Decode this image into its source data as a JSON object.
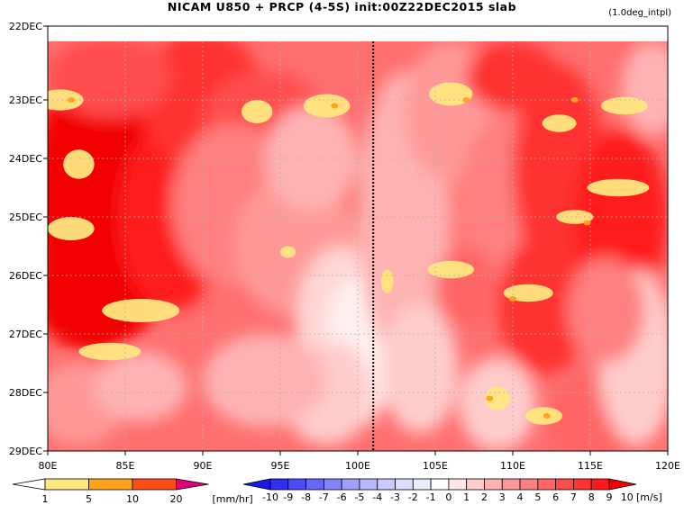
{
  "header": {
    "title": "NICAM   U850 + PRCP (4-5S) init:00Z22DEC2015 slab",
    "note": "(1.0deg_intpl)"
  },
  "chart_data": {
    "type": "heatmap",
    "title": "NICAM   U850 + PRCP (4-5S) init:00Z22DEC2015 slab",
    "x_ticks": [
      "80E",
      "85E",
      "90E",
      "95E",
      "100E",
      "105E",
      "110E",
      "115E",
      "120E"
    ],
    "x_values": [
      80,
      85,
      90,
      95,
      100,
      105,
      110,
      115,
      120
    ],
    "xlim": [
      80,
      120
    ],
    "y_ticks": [
      "22DEC",
      "23DEC",
      "24DEC",
      "25DEC",
      "26DEC",
      "27DEC",
      "28DEC",
      "29DEC"
    ],
    "y_values": [
      22,
      23,
      24,
      25,
      26,
      27,
      28,
      29
    ],
    "ylim": [
      22,
      29
    ],
    "y_inverted": true,
    "grid": true,
    "reference_line_lon": 101,
    "shaded_field": {
      "name": "U850",
      "unit": "[m/s]",
      "levels": [
        "-10",
        "-9",
        "-8",
        "-7",
        "-6",
        "-5",
        "-4",
        "-3",
        "-2",
        "-1",
        "0",
        "1",
        "2",
        "3",
        "4",
        "5",
        "6",
        "7",
        "8",
        "9",
        "10"
      ],
      "colors": [
        "#1818e8",
        "#3030f0",
        "#4c4cf4",
        "#6868f8",
        "#8484fa",
        "#a0a0fc",
        "#b8b8fd",
        "#cacafe",
        "#dcdcff",
        "#ececff",
        "#ffffff",
        "#ffe6e6",
        "#ffcccc",
        "#ffb3b3",
        "#ff9999",
        "#ff8080",
        "#ff6666",
        "#ff4d4d",
        "#ff3333",
        "#ff1a1a",
        "#f20000"
      ]
    },
    "contour_field": {
      "name": "PRCP",
      "unit": "[mm/hr]",
      "levels": [
        "1",
        "5",
        "10",
        "20"
      ],
      "colors": [
        "#ffffff",
        "#ffe680",
        "#ffa31a",
        "#ff4d1a",
        "#e0007a"
      ]
    }
  }
}
